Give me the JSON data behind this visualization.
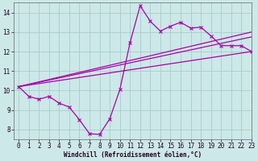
{
  "xlabel": "Windchill (Refroidissement éolien,°C)",
  "xlim": [
    -0.5,
    23
  ],
  "ylim": [
    7.5,
    14.5
  ],
  "xticks": [
    0,
    1,
    2,
    3,
    4,
    5,
    6,
    7,
    8,
    9,
    10,
    11,
    12,
    13,
    14,
    15,
    16,
    17,
    18,
    19,
    20,
    21,
    22,
    23
  ],
  "yticks": [
    8,
    9,
    10,
    11,
    12,
    13,
    14
  ],
  "bg_color": "#cce8e8",
  "line_color": "#aa00aa",
  "grid_color": "#aacccc",
  "data_x": [
    0,
    1,
    2,
    3,
    4,
    5,
    6,
    7,
    8,
    9,
    10,
    11,
    12,
    13,
    14,
    15,
    16,
    17,
    18,
    19,
    20,
    21,
    22,
    23
  ],
  "data_y": [
    10.2,
    9.7,
    9.55,
    9.7,
    9.35,
    9.15,
    8.5,
    7.78,
    7.75,
    8.55,
    10.05,
    12.45,
    14.35,
    13.55,
    13.05,
    13.3,
    13.5,
    13.2,
    13.25,
    12.8,
    12.3,
    12.3,
    12.3,
    12.0
  ],
  "trend1_x": [
    0,
    23
  ],
  "trend1_y": [
    10.2,
    12.0
  ],
  "trend2_x": [
    0,
    23
  ],
  "trend2_y": [
    10.2,
    12.75
  ],
  "trend3_x": [
    0,
    23
  ],
  "trend3_y": [
    10.2,
    13.0
  ],
  "font_family": "monospace",
  "tick_fontsize": 5.5,
  "xlabel_fontsize": 5.5
}
